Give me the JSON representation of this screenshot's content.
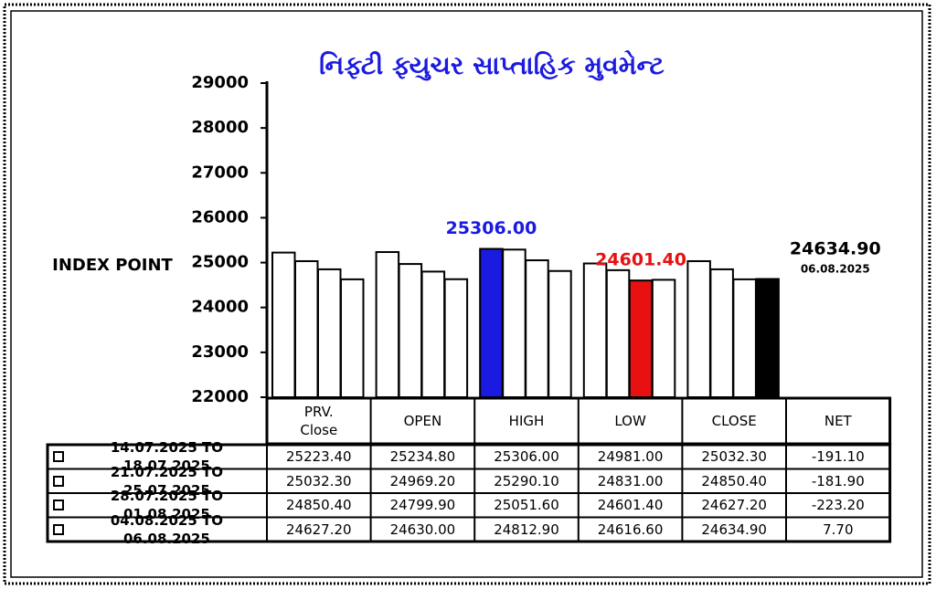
{
  "chart_data": {
    "type": "bar",
    "title": "નિફ્ટી ફ્યુચર સાપ્તાહિક મુવમેન્ટ",
    "ylabel": "INDEX POINT",
    "categories": [
      "PRV. Close",
      "OPEN",
      "HIGH",
      "LOW",
      "CLOSE"
    ],
    "net_header": "NET",
    "ylim": [
      22000,
      29000
    ],
    "yticks": [
      22000,
      23000,
      24000,
      25000,
      26000,
      27000,
      28000,
      29000
    ],
    "annotation": "06.08.2025",
    "series": [
      {
        "name": "14.07.2025 TO 18.07.2025",
        "color": "#ffffff",
        "values": [
          25223.4,
          25234.8,
          25306,
          24981,
          25032.3
        ],
        "value_labels": [
          "25223.40",
          "25234.80",
          "25306.00",
          "24981.00",
          "25032.30"
        ],
        "highlight_colors": [
          null,
          null,
          "#1a1ae0",
          null,
          null
        ],
        "net": -191.1,
        "net_label": "-191.10"
      },
      {
        "name": "21.07.2025 TO 25.07.2025",
        "color": "#ffffff",
        "values": [
          25032.3,
          24969.2,
          25290.1,
          24831,
          24850.4
        ],
        "value_labels": [
          "25032.30",
          "24969.20",
          "25290.10",
          "24831.00",
          "24850.40"
        ],
        "highlight_colors": [
          null,
          null,
          null,
          null,
          null
        ],
        "net": -181.9,
        "net_label": "-181.90"
      },
      {
        "name": "28.07.2025 TO 01.08.2025",
        "color": "#ffffff",
        "values": [
          24850.4,
          24799.9,
          25051.6,
          24601.4,
          24627.2
        ],
        "value_labels": [
          "24850.40",
          "24799.90",
          "25051.60",
          "24601.40",
          "24627.20"
        ],
        "highlight_colors": [
          null,
          null,
          null,
          "#e81010",
          null
        ],
        "net": -223.2,
        "net_label": "-223.20"
      },
      {
        "name": "04.08.2025 TO 06.08.2025",
        "color": "#ffffff",
        "values": [
          24627.2,
          24630,
          24812.9,
          24616.6,
          24634.9
        ],
        "value_labels": [
          "24627.20",
          "24630.00",
          "24812.90",
          "24616.60",
          "24634.90"
        ],
        "highlight_colors": [
          null,
          null,
          null,
          null,
          "#000000"
        ],
        "net": 7.7,
        "net_label": "7.70"
      }
    ]
  }
}
